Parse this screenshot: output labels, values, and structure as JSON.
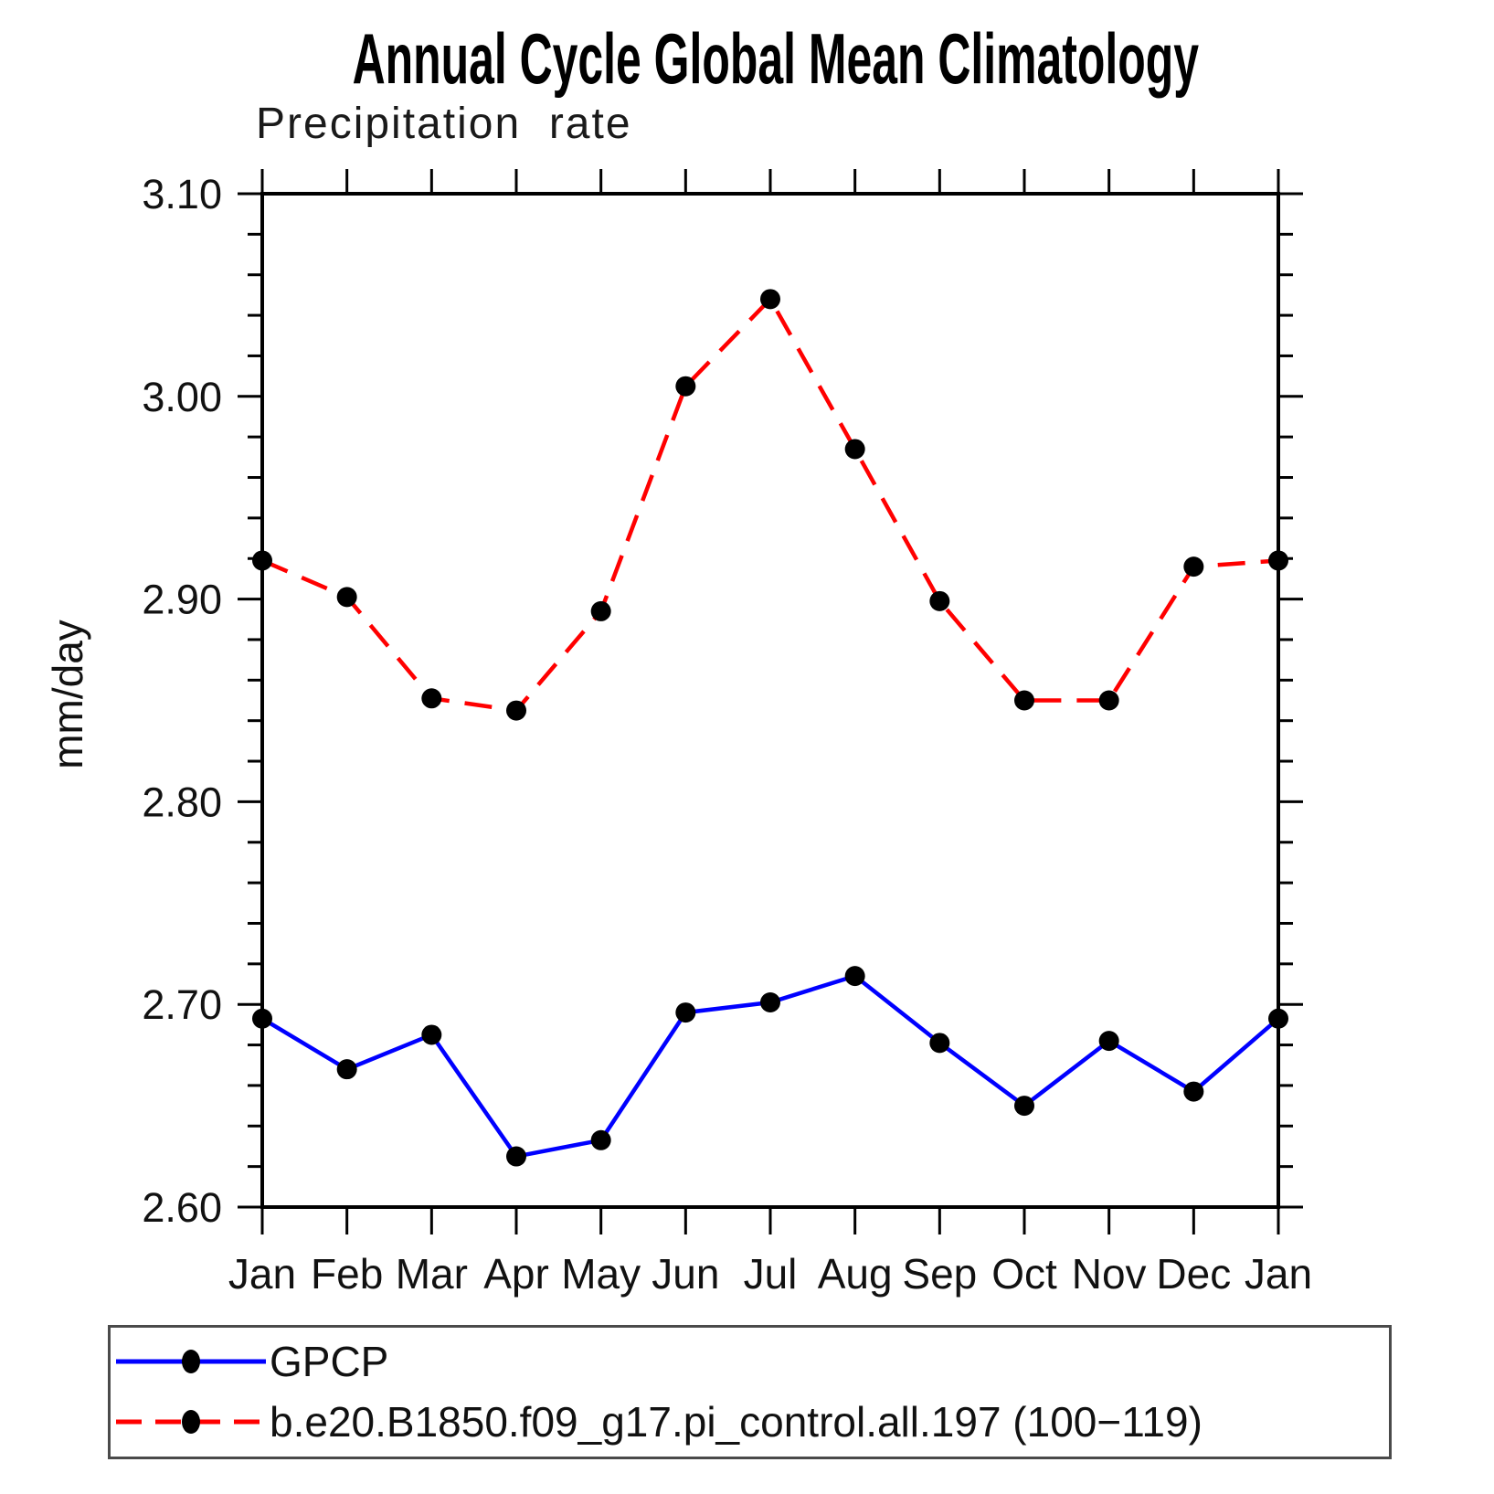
{
  "chart_data": {
    "type": "line",
    "title": "Annual Cycle Global Mean Climatology",
    "subtitle": "Precipitation  rate",
    "ylabel": "mm/day",
    "x_categories": [
      "Jan",
      "Feb",
      "Mar",
      "Apr",
      "May",
      "Jun",
      "Jul",
      "Aug",
      "Sep",
      "Oct",
      "Nov",
      "Dec",
      "Jan"
    ],
    "ylim": [
      2.6,
      3.1
    ],
    "ytick_major_step": 0.1,
    "ytick_minor_step": 0.02,
    "ytick_labels": [
      "2.60",
      "2.70",
      "2.80",
      "2.90",
      "3.00",
      "3.10"
    ],
    "grid": "off",
    "legend_position": "bottom",
    "axis_color": "#000000",
    "marker_color": "#000000",
    "series": [
      {
        "name": "GPCP",
        "color": "#0000ff",
        "style": "solid",
        "values": [
          2.693,
          2.668,
          2.685,
          2.625,
          2.633,
          2.696,
          2.701,
          2.714,
          2.681,
          2.65,
          2.682,
          2.657,
          2.693
        ]
      },
      {
        "name": "b.e20.B1850.f09_g17.pi_control.all.197 (100−119)",
        "color": "#ff0000",
        "style": "dashed",
        "values": [
          2.919,
          2.901,
          2.851,
          2.845,
          2.894,
          3.005,
          3.048,
          2.974,
          2.899,
          2.85,
          2.85,
          2.916,
          2.919
        ]
      }
    ]
  }
}
